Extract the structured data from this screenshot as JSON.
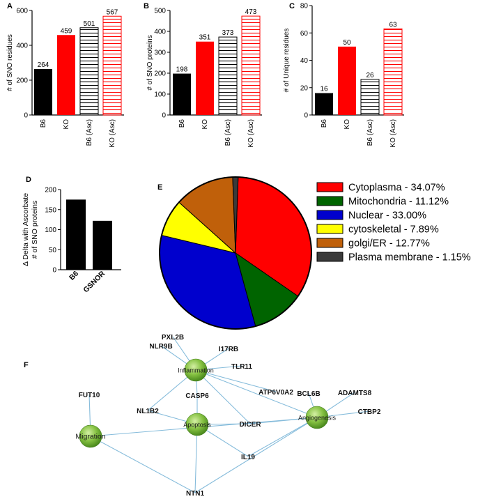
{
  "chart_data": [
    {
      "panel": "A",
      "type": "bar",
      "categories": [
        "B6",
        "KO",
        "B6 (Asc)",
        "KO (Asc)"
      ],
      "values": [
        264,
        459,
        501,
        567
      ],
      "value_labels": [
        "264",
        "459",
        "501",
        "567"
      ],
      "ylabel": "# of SNO residues",
      "ylim": [
        0,
        600
      ],
      "yticks": [
        0,
        200,
        400,
        600
      ],
      "styles": [
        "solid-black",
        "solid-red",
        "hatch-black",
        "hatch-red"
      ]
    },
    {
      "panel": "B",
      "type": "bar",
      "categories": [
        "B6",
        "KO",
        "B6 (Asc)",
        "KO (Asc)"
      ],
      "values": [
        198,
        351,
        373,
        473
      ],
      "value_labels": [
        "198",
        "351",
        "373",
        "473"
      ],
      "ylabel": "# of SNO proteins",
      "ylim": [
        0,
        500
      ],
      "yticks": [
        0,
        100,
        200,
        300,
        400,
        500
      ],
      "styles": [
        "solid-black",
        "solid-red",
        "hatch-black",
        "hatch-red"
      ]
    },
    {
      "panel": "C",
      "type": "bar",
      "categories": [
        "B6",
        "KO",
        "B6 (Asc)",
        "KO (Asc)"
      ],
      "values": [
        16,
        50,
        26,
        63
      ],
      "value_labels": [
        "16",
        "50",
        "26",
        "63"
      ],
      "ylabel": "# of Unique residues",
      "ylim": [
        0,
        80
      ],
      "yticks": [
        0,
        20,
        40,
        60,
        80
      ],
      "styles": [
        "solid-black",
        "solid-red",
        "hatch-black",
        "hatch-red"
      ]
    },
    {
      "panel": "D",
      "type": "bar",
      "categories": [
        "B6",
        "GSNOR"
      ],
      "values": [
        175,
        122
      ],
      "ylabel_lines": [
        "Δ Delta with Ascorbate",
        "# of SNO proteins"
      ],
      "ylim": [
        0,
        200
      ],
      "yticks": [
        0,
        50,
        100,
        150,
        200
      ],
      "styles": [
        "solid-black",
        "solid-black"
      ]
    },
    {
      "panel": "E",
      "type": "pie",
      "slices": [
        {
          "label": "Cytoplasma - 34.07%",
          "value": 34.07,
          "color": "#ff0000"
        },
        {
          "label": "Mitochondria - 11.12%",
          "value": 11.12,
          "color": "#006400"
        },
        {
          "label": "Nuclear - 33.00%",
          "value": 33.0,
          "color": "#0000cd"
        },
        {
          "label": "cytoskeletal - 7.89%",
          "value": 7.89,
          "color": "#ffff00"
        },
        {
          "label": "golgi/ER - 12.77%",
          "value": 12.77,
          "color": "#c0600a"
        },
        {
          "label": "Plasma membrane - 1.15%",
          "value": 1.15,
          "color": "#3a3a3a"
        }
      ],
      "legend_position": "right"
    },
    {
      "panel": "F",
      "type": "network",
      "hubs": [
        "Inflammation",
        "Apoptosis",
        "Angiogenesis",
        "Migration"
      ],
      "genes": [
        "PXL2B",
        "NLR9B",
        "I17RB",
        "TLR11",
        "ATP6V0A2",
        "CASP6",
        "NL1B2",
        "DICER",
        "BCL6B",
        "ADAMTS8",
        "CTBP2",
        "FUT10",
        "IL19",
        "NTN1"
      ],
      "edges": [
        [
          "PXL2B",
          "Inflammation"
        ],
        [
          "NLR9B",
          "Inflammation"
        ],
        [
          "I17RB",
          "Inflammation"
        ],
        [
          "TLR11",
          "Inflammation"
        ],
        [
          "Inflammation",
          "ATP6V0A2"
        ],
        [
          "Inflammation",
          "Angiogenesis"
        ],
        [
          "Inflammation",
          "CASP6"
        ],
        [
          "Inflammation",
          "NL1B2"
        ],
        [
          "Inflammation",
          "DICER"
        ],
        [
          "CASP6",
          "Apoptosis"
        ],
        [
          "NL1B2",
          "Apoptosis"
        ],
        [
          "DICER",
          "Apoptosis"
        ],
        [
          "DICER",
          "Angiogenesis"
        ],
        [
          "IL19",
          "Apoptosis"
        ],
        [
          "IL19",
          "Angiogenesis"
        ],
        [
          "BCL6B",
          "Angiogenesis"
        ],
        [
          "ADAMTS8",
          "Angiogenesis"
        ],
        [
          "CTBP2",
          "Angiogenesis"
        ],
        [
          "FUT10",
          "Migration"
        ],
        [
          "Migration",
          "NTN1"
        ],
        [
          "Apoptosis",
          "NTN1"
        ],
        [
          "NTN1",
          "Angiogenesis"
        ],
        [
          "Migration",
          "Angiogenesis"
        ]
      ]
    }
  ],
  "panel_letters": [
    "A",
    "B",
    "C",
    "D",
    "E",
    "F"
  ]
}
